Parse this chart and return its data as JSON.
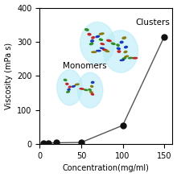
{
  "x_data": [
    5,
    10,
    20,
    50,
    100,
    150
  ],
  "y_data": [
    2,
    3,
    4,
    5,
    55,
    315
  ],
  "xlabel": "Concentration(mg/ml)",
  "ylabel": "Viscosity (mPa s)",
  "xlim": [
    0,
    160
  ],
  "ylim": [
    0,
    400
  ],
  "xticks": [
    0,
    50,
    100,
    150
  ],
  "yticks": [
    0,
    100,
    200,
    300,
    400
  ],
  "line_color": "#555555",
  "marker_color": "#111111",
  "marker_size": 5,
  "background_color": "#ffffff",
  "label_clusters": "Clusters",
  "label_monomers": "Monomers",
  "bubble_color": "#b8ecf8",
  "bubble_alpha": 0.6,
  "green": "#2a8a1a",
  "red": "#cc1a1a",
  "blue": "#1133bb",
  "olive": "#887700",
  "antibody_alpha": 0.92
}
